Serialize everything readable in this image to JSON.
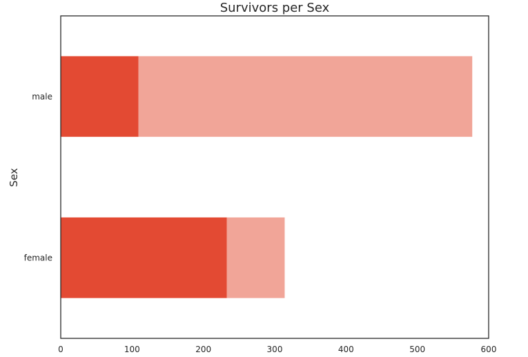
{
  "chart_data": {
    "type": "bar",
    "orientation": "horizontal",
    "stacked": true,
    "title": "Survivors per Sex",
    "xlabel": "",
    "ylabel": "Sex",
    "categories": [
      "female",
      "male"
    ],
    "series": [
      {
        "values": [
          233,
          109
        ],
        "color": "#e34a33"
      },
      {
        "values": [
          81,
          468
        ],
        "color": "#f1a598"
      }
    ],
    "xlim": [
      0,
      600
    ],
    "xticks": [
      0,
      100,
      200,
      300,
      400,
      500,
      600
    ],
    "grid": false,
    "legend": "none"
  }
}
